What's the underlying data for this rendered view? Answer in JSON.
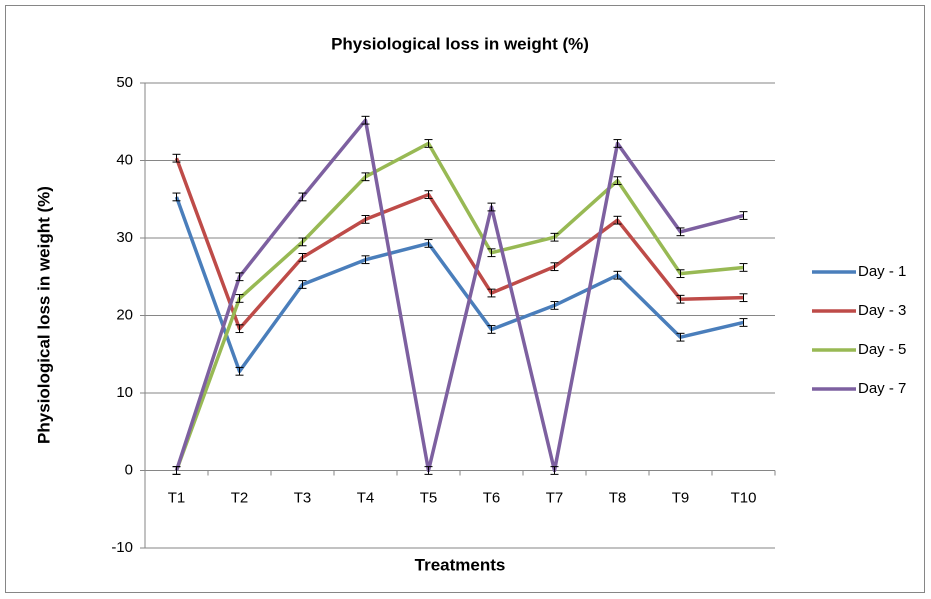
{
  "chart_data": {
    "type": "line",
    "title": "Physiological loss in weight (%)",
    "x_label": "Treatments",
    "y_label": "Physiological loss in weight (%)",
    "categories": [
      "T1",
      "T2",
      "T3",
      "T4",
      "T5",
      "T6",
      "T7",
      "T8",
      "T9",
      "T10"
    ],
    "series": [
      {
        "name": "Day - 1",
        "color": "#4a7ebb",
        "values": [
          35.3,
          12.8,
          24,
          27.2,
          29.3,
          18.2,
          21.3,
          25.2,
          17.2,
          19.1
        ],
        "errors": [
          0.5,
          0.5,
          0.5,
          0.5,
          0.5,
          0.5,
          0.5,
          0.5,
          0.5,
          0.5
        ]
      },
      {
        "name": "Day - 3",
        "color": "#be4b48",
        "values": [
          40.3,
          18.3,
          27.5,
          32.4,
          35.6,
          22.9,
          26.3,
          32.3,
          22.1,
          22.3
        ],
        "errors": [
          0.5,
          0.5,
          0.5,
          0.5,
          0.5,
          0.5,
          0.5,
          0.5,
          0.5,
          0.5
        ]
      },
      {
        "name": "Day - 5",
        "color": "#98b954",
        "values": [
          0,
          22.2,
          29.5,
          37.9,
          42.2,
          28.1,
          30.1,
          37.4,
          25.4,
          26.2
        ],
        "errors": [
          0.5,
          0.5,
          0.5,
          0.5,
          0.5,
          0.5,
          0.5,
          0.5,
          0.5,
          0.5
        ]
      },
      {
        "name": "Day - 7",
        "color": "#7d60a0",
        "values": [
          0,
          25,
          35.3,
          45.2,
          0,
          34,
          0,
          42.2,
          30.8,
          32.9
        ],
        "errors": [
          0.5,
          0.5,
          0.5,
          0.5,
          0.5,
          0.5,
          0.5,
          0.5,
          0.5,
          0.5
        ]
      }
    ],
    "ylim": [
      -10,
      50
    ],
    "yticks": [
      -10,
      0,
      10,
      20,
      30,
      40,
      50
    ],
    "grid": true,
    "legend": "right"
  }
}
